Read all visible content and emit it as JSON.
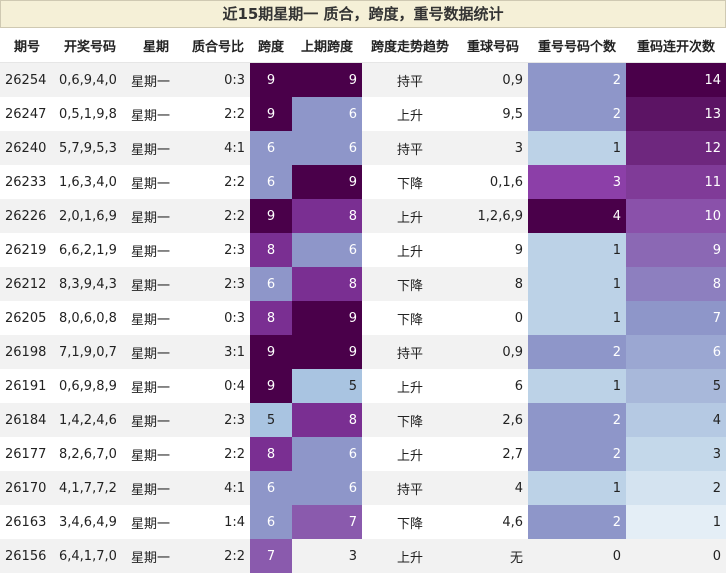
{
  "title": "近15期星期一 质合，跨度，重号数据统计",
  "headers": [
    "期号",
    "开奖号码",
    "星期",
    "质合号比",
    "跨度",
    "上期跨度",
    "跨度走势趋势",
    "重球号码",
    "重号号码个数",
    "重码连开次数"
  ],
  "rows": [
    {
      "issue": "26254",
      "numbers": "0,6,9,4,0",
      "weekday": "星期一",
      "ratio": "0:3",
      "span": 9,
      "prev_span": 9,
      "trend": "持平",
      "repeat_nums": "0,9",
      "repeat_count": 2,
      "streak": 14
    },
    {
      "issue": "26247",
      "numbers": "0,5,1,9,8",
      "weekday": "星期一",
      "ratio": "2:2",
      "span": 9,
      "prev_span": 6,
      "trend": "上升",
      "repeat_nums": "9,5",
      "repeat_count": 2,
      "streak": 13
    },
    {
      "issue": "26240",
      "numbers": "5,7,9,5,3",
      "weekday": "星期一",
      "ratio": "4:1",
      "span": 6,
      "prev_span": 6,
      "trend": "持平",
      "repeat_nums": "3",
      "repeat_count": 1,
      "streak": 12
    },
    {
      "issue": "26233",
      "numbers": "1,6,3,4,0",
      "weekday": "星期一",
      "ratio": "2:2",
      "span": 6,
      "prev_span": 9,
      "trend": "下降",
      "repeat_nums": "0,1,6",
      "repeat_count": 3,
      "streak": 11
    },
    {
      "issue": "26226",
      "numbers": "2,0,1,6,9",
      "weekday": "星期一",
      "ratio": "2:2",
      "span": 9,
      "prev_span": 8,
      "trend": "上升",
      "repeat_nums": "1,2,6,9",
      "repeat_count": 4,
      "streak": 10
    },
    {
      "issue": "26219",
      "numbers": "6,6,2,1,9",
      "weekday": "星期一",
      "ratio": "2:3",
      "span": 8,
      "prev_span": 6,
      "trend": "上升",
      "repeat_nums": "9",
      "repeat_count": 1,
      "streak": 9
    },
    {
      "issue": "26212",
      "numbers": "8,3,9,4,3",
      "weekday": "星期一",
      "ratio": "2:3",
      "span": 6,
      "prev_span": 8,
      "trend": "下降",
      "repeat_nums": "8",
      "repeat_count": 1,
      "streak": 8
    },
    {
      "issue": "26205",
      "numbers": "8,0,6,0,8",
      "weekday": "星期一",
      "ratio": "0:3",
      "span": 8,
      "prev_span": 9,
      "trend": "下降",
      "repeat_nums": "0",
      "repeat_count": 1,
      "streak": 7
    },
    {
      "issue": "26198",
      "numbers": "7,1,9,0,7",
      "weekday": "星期一",
      "ratio": "3:1",
      "span": 9,
      "prev_span": 9,
      "trend": "持平",
      "repeat_nums": "0,9",
      "repeat_count": 2,
      "streak": 6
    },
    {
      "issue": "26191",
      "numbers": "0,6,9,8,9",
      "weekday": "星期一",
      "ratio": "0:4",
      "span": 9,
      "prev_span": 5,
      "trend": "上升",
      "repeat_nums": "6",
      "repeat_count": 1,
      "streak": 5
    },
    {
      "issue": "26184",
      "numbers": "1,4,2,4,6",
      "weekday": "星期一",
      "ratio": "2:3",
      "span": 5,
      "prev_span": 8,
      "trend": "下降",
      "repeat_nums": "2,6",
      "repeat_count": 2,
      "streak": 4
    },
    {
      "issue": "26177",
      "numbers": "8,2,6,7,0",
      "weekday": "星期一",
      "ratio": "2:2",
      "span": 8,
      "prev_span": 6,
      "trend": "上升",
      "repeat_nums": "2,7",
      "repeat_count": 2,
      "streak": 3
    },
    {
      "issue": "26170",
      "numbers": "4,1,7,7,2",
      "weekday": "星期一",
      "ratio": "4:1",
      "span": 6,
      "prev_span": 6,
      "trend": "持平",
      "repeat_nums": "4",
      "repeat_count": 1,
      "streak": 2
    },
    {
      "issue": "26163",
      "numbers": "3,4,6,4,9",
      "weekday": "星期一",
      "ratio": "1:4",
      "span": 6,
      "prev_span": 7,
      "trend": "下降",
      "repeat_nums": "4,6",
      "repeat_count": 2,
      "streak": 1
    },
    {
      "issue": "26156",
      "numbers": "6,4,1,7,0",
      "weekday": "星期一",
      "ratio": "2:2",
      "span": 7,
      "prev_span": 3,
      "trend": "上升",
      "repeat_nums": "无",
      "repeat_count": 0,
      "streak": 0
    }
  ],
  "colors": {
    "title_bg": "#f5f0d7",
    "heat_low": "#f4f9fc",
    "heat_light": "#bcd2e7",
    "heat_mid": "#8e96c9",
    "heat_purple": "#8945a5",
    "heat_high": "#4a004a"
  }
}
